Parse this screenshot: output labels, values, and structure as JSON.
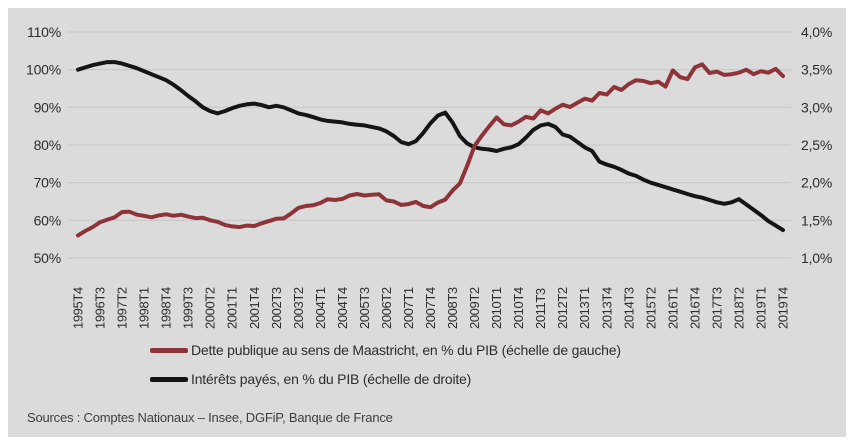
{
  "source": "Sources : Comptes Nationaux – Insee, DGFiP, Banque de France",
  "colors": {
    "panel_background": "#dbdbdb",
    "gridline": "#c5c5c5",
    "axis_text": "#2d2d2d",
    "source_text": "#3e3e3e",
    "debt_line": "#8e3438",
    "interest_line": "#151515"
  },
  "chart_data": {
    "type": "line",
    "title": "",
    "grid": "horizontal",
    "legend_position": "bottom",
    "x_label_every_n_points": 3,
    "x_labels": [
      "1995T4",
      "1996T3",
      "1997T2",
      "1998T1",
      "1998T4",
      "1999T3",
      "2000T2",
      "2001T1",
      "2001T4",
      "2002T3",
      "2003T2",
      "2004T1",
      "2004T4",
      "2005T3",
      "2006T2",
      "2007T1",
      "2007T4",
      "2008T3",
      "2009T2",
      "2010T1",
      "2010T4",
      "2011T3",
      "2012T2",
      "2013T1",
      "2013T4",
      "2014T3",
      "2015T2",
      "2016T1",
      "2016T4",
      "2017T3",
      "2018T2",
      "2019T1",
      "2019T4"
    ],
    "left_axis": {
      "labels": [
        "110%",
        "100%",
        "90%",
        "80%",
        "70%",
        "60%",
        "50%"
      ],
      "values": [
        110,
        100,
        90,
        80,
        70,
        60,
        50
      ],
      "min": 50,
      "max": 110
    },
    "right_axis": {
      "labels": [
        "4,0%",
        "3,5%",
        "3,0%",
        "2,5%",
        "2,0%",
        "1,5%",
        "1,0%"
      ],
      "values": [
        4.0,
        3.5,
        3.0,
        2.5,
        2.0,
        1.5,
        1.0
      ],
      "min": 1.0,
      "max": 4.0
    },
    "series": [
      {
        "name": "Dette publique au sens de Maastricht, en % du PIB (échelle de gauche)",
        "axis": "left",
        "color": "#8e3438",
        "values": [
          56.0,
          57.2,
          58.2,
          59.5,
          60.2,
          60.8,
          62.2,
          62.3,
          61.5,
          61.2,
          60.8,
          61.3,
          61.6,
          61.2,
          61.5,
          61.0,
          60.6,
          60.7,
          60.0,
          59.6,
          58.8,
          58.4,
          58.2,
          58.6,
          58.5,
          59.2,
          59.8,
          60.4,
          60.5,
          61.8,
          63.3,
          63.8,
          64.0,
          64.6,
          65.6,
          65.4,
          65.7,
          66.6,
          67.0,
          66.6,
          66.8,
          66.9,
          65.3,
          65.0,
          64.1,
          64.3,
          64.9,
          63.8,
          63.5,
          64.7,
          65.5,
          67.9,
          69.8,
          74.5,
          79.8,
          82.5,
          85.0,
          87.3,
          85.5,
          85.2,
          86.2,
          87.5,
          87.0,
          89.2,
          88.4,
          89.6,
          90.7,
          90.1,
          91.2,
          92.3,
          91.8,
          93.8,
          93.4,
          95.4,
          94.6,
          96.2,
          97.2,
          97.0,
          96.4,
          96.8,
          95.5,
          99.8,
          98.0,
          97.5,
          100.6,
          101.4,
          99.1,
          99.5,
          98.6,
          98.8,
          99.2,
          100.0,
          98.8,
          99.6,
          99.2,
          100.2,
          98.3
        ]
      },
      {
        "name": "Intérêts payés, en % du PIB (échelle de droite)",
        "axis": "right",
        "color": "#151515",
        "values": [
          3.5,
          3.53,
          3.56,
          3.58,
          3.6,
          3.6,
          3.58,
          3.55,
          3.52,
          3.48,
          3.44,
          3.4,
          3.36,
          3.3,
          3.23,
          3.15,
          3.08,
          3.0,
          2.95,
          2.92,
          2.95,
          2.99,
          3.02,
          3.04,
          3.05,
          3.03,
          3.0,
          3.02,
          3.0,
          2.96,
          2.92,
          2.9,
          2.87,
          2.84,
          2.82,
          2.81,
          2.8,
          2.78,
          2.77,
          2.76,
          2.74,
          2.72,
          2.68,
          2.62,
          2.54,
          2.51,
          2.55,
          2.66,
          2.79,
          2.89,
          2.93,
          2.8,
          2.62,
          2.52,
          2.47,
          2.45,
          2.44,
          2.42,
          2.45,
          2.47,
          2.51,
          2.6,
          2.7,
          2.76,
          2.78,
          2.74,
          2.64,
          2.61,
          2.54,
          2.47,
          2.42,
          2.28,
          2.24,
          2.21,
          2.17,
          2.12,
          2.09,
          2.04,
          2.0,
          1.97,
          1.94,
          1.91,
          1.88,
          1.85,
          1.82,
          1.8,
          1.77,
          1.74,
          1.72,
          1.74,
          1.78,
          1.71,
          1.64,
          1.57,
          1.49,
          1.43,
          1.37
        ]
      }
    ]
  }
}
